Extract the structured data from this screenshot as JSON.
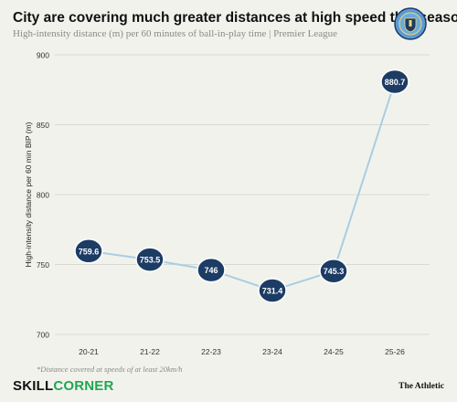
{
  "header": {
    "title": "City are covering much greater distances at high speed this season",
    "subtitle": "High-intensity distance (m) per 60 minutes of ball-in-play time | Premier League",
    "crest_icon": "manchester-city-crest-icon"
  },
  "chart_data": {
    "type": "line",
    "categories": [
      "20-21",
      "21-22",
      "22-23",
      "23-24",
      "24-25",
      "25-26"
    ],
    "values": [
      759.6,
      753.5,
      746,
      731.4,
      745.3,
      880.7
    ],
    "value_labels": [
      "759.6",
      "753.5",
      "746",
      "731.4",
      "745.3",
      "880.7"
    ],
    "ylabel": "High-intensity distance per 60 min BIP (m)",
    "ylim": [
      700,
      900
    ],
    "yticks": [
      700,
      750,
      800,
      850,
      900
    ],
    "grid": true,
    "colors": {
      "line": "#a9cde3",
      "marker": "#1c3c64",
      "marker_stroke": "#ffffff",
      "grid": "#d9d9d4"
    }
  },
  "footer": {
    "footnote": "*Distance covered at speeds of at least 20km/h",
    "brand_left_part1": "SKILL",
    "brand_left_part2": "CORNER",
    "brand_right": "The Athletic"
  }
}
